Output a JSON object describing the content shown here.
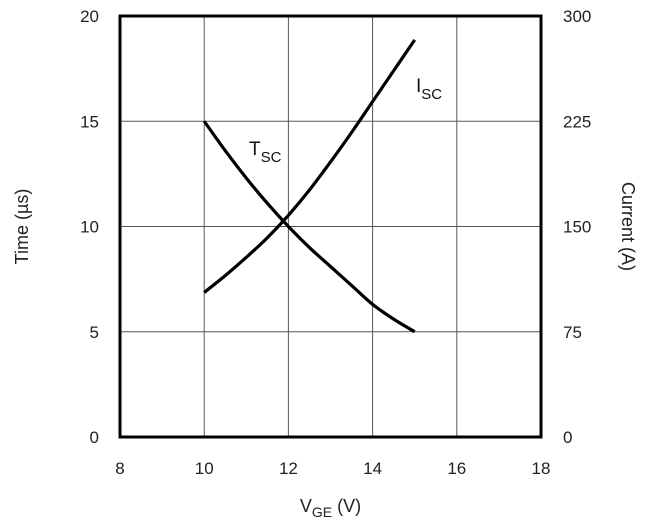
{
  "chart_data": {
    "type": "line",
    "title": "",
    "xlabel": {
      "main": "V",
      "sub": "GE",
      "unit": " (V)"
    },
    "ylabel_left": "Time (µs)",
    "ylabel_right": "Current (A)",
    "xlim": [
      8,
      18
    ],
    "ylim_left": [
      0,
      20
    ],
    "ylim_right": [
      0,
      300
    ],
    "x_ticks": [
      "8",
      "10",
      "12",
      "14",
      "16",
      "18"
    ],
    "y_left_ticks": [
      "0",
      "5",
      "10",
      "15",
      "20"
    ],
    "y_right_ticks": [
      "0",
      "75",
      "150",
      "225",
      "300"
    ],
    "grid": true,
    "series": [
      {
        "name": "T",
        "name_sub": "SC",
        "axis": "left",
        "x": [
          10,
          10.5,
          11,
          11.5,
          12,
          12.5,
          13,
          13.5,
          14,
          14.5,
          15
        ],
        "values": [
          15.0,
          13.6,
          12.3,
          11.1,
          10.0,
          9.0,
          8.1,
          7.2,
          6.3,
          5.6,
          5.0
        ]
      },
      {
        "name": "I",
        "name_sub": "SC",
        "axis": "right",
        "x": [
          10,
          10.5,
          11,
          11.5,
          12,
          12.5,
          13,
          13.5,
          14,
          14.5,
          15
        ],
        "values": [
          103,
          115,
          128,
          142,
          158,
          176,
          196,
          217,
          239,
          261,
          283
        ]
      }
    ]
  }
}
